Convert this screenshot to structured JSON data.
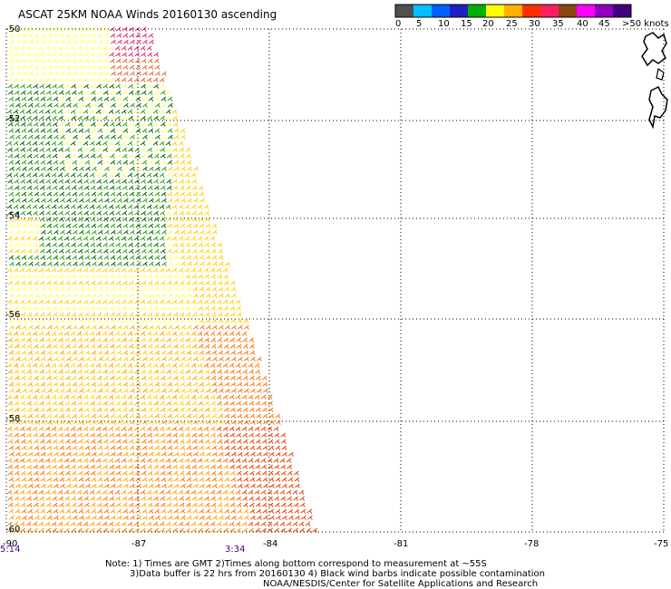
{
  "title": "ASCAT 25KM NOAA Winds 20160130 ascending",
  "legend": {
    "labels": [
      "0",
      "5",
      "10",
      "15",
      "20",
      "25",
      "30",
      "35",
      "40",
      "45",
      ">50 knots"
    ],
    "colors": [
      "#505050",
      "#00c0ff",
      "#0060ff",
      "#2020c0",
      "#00b000",
      "#ffff00",
      "#ffb000",
      "#ff3000",
      "#ff2060",
      "#8b4513",
      "#ff00ff",
      "#9000c0",
      "#400080"
    ]
  },
  "map": {
    "latitudes": [
      "-50",
      "-52",
      "-54",
      "-56",
      "-58",
      "-60"
    ],
    "longitudes": [
      "-90",
      "-87",
      "-84",
      "-81",
      "-78",
      "-75"
    ],
    "lat_range": [
      -60,
      -50
    ],
    "lon_range": [
      -90,
      -75
    ],
    "times": [
      "5:14",
      "3:34"
    ],
    "swath_colors": [
      "#ffff60",
      "#ffd000",
      "#ffa000",
      "#ff7000",
      "#e04000",
      "#006000",
      "#20a000"
    ]
  },
  "notes": [
    "Note: 1) Times are GMT 2)Times along bottom correspond to measurement at ~55S",
    "3)Data buffer is 22 hrs from 20160130 4) Black wind barbs indicate possible contamination",
    "NOAA/NESDIS/Center for Satellite Applications and Research"
  ]
}
